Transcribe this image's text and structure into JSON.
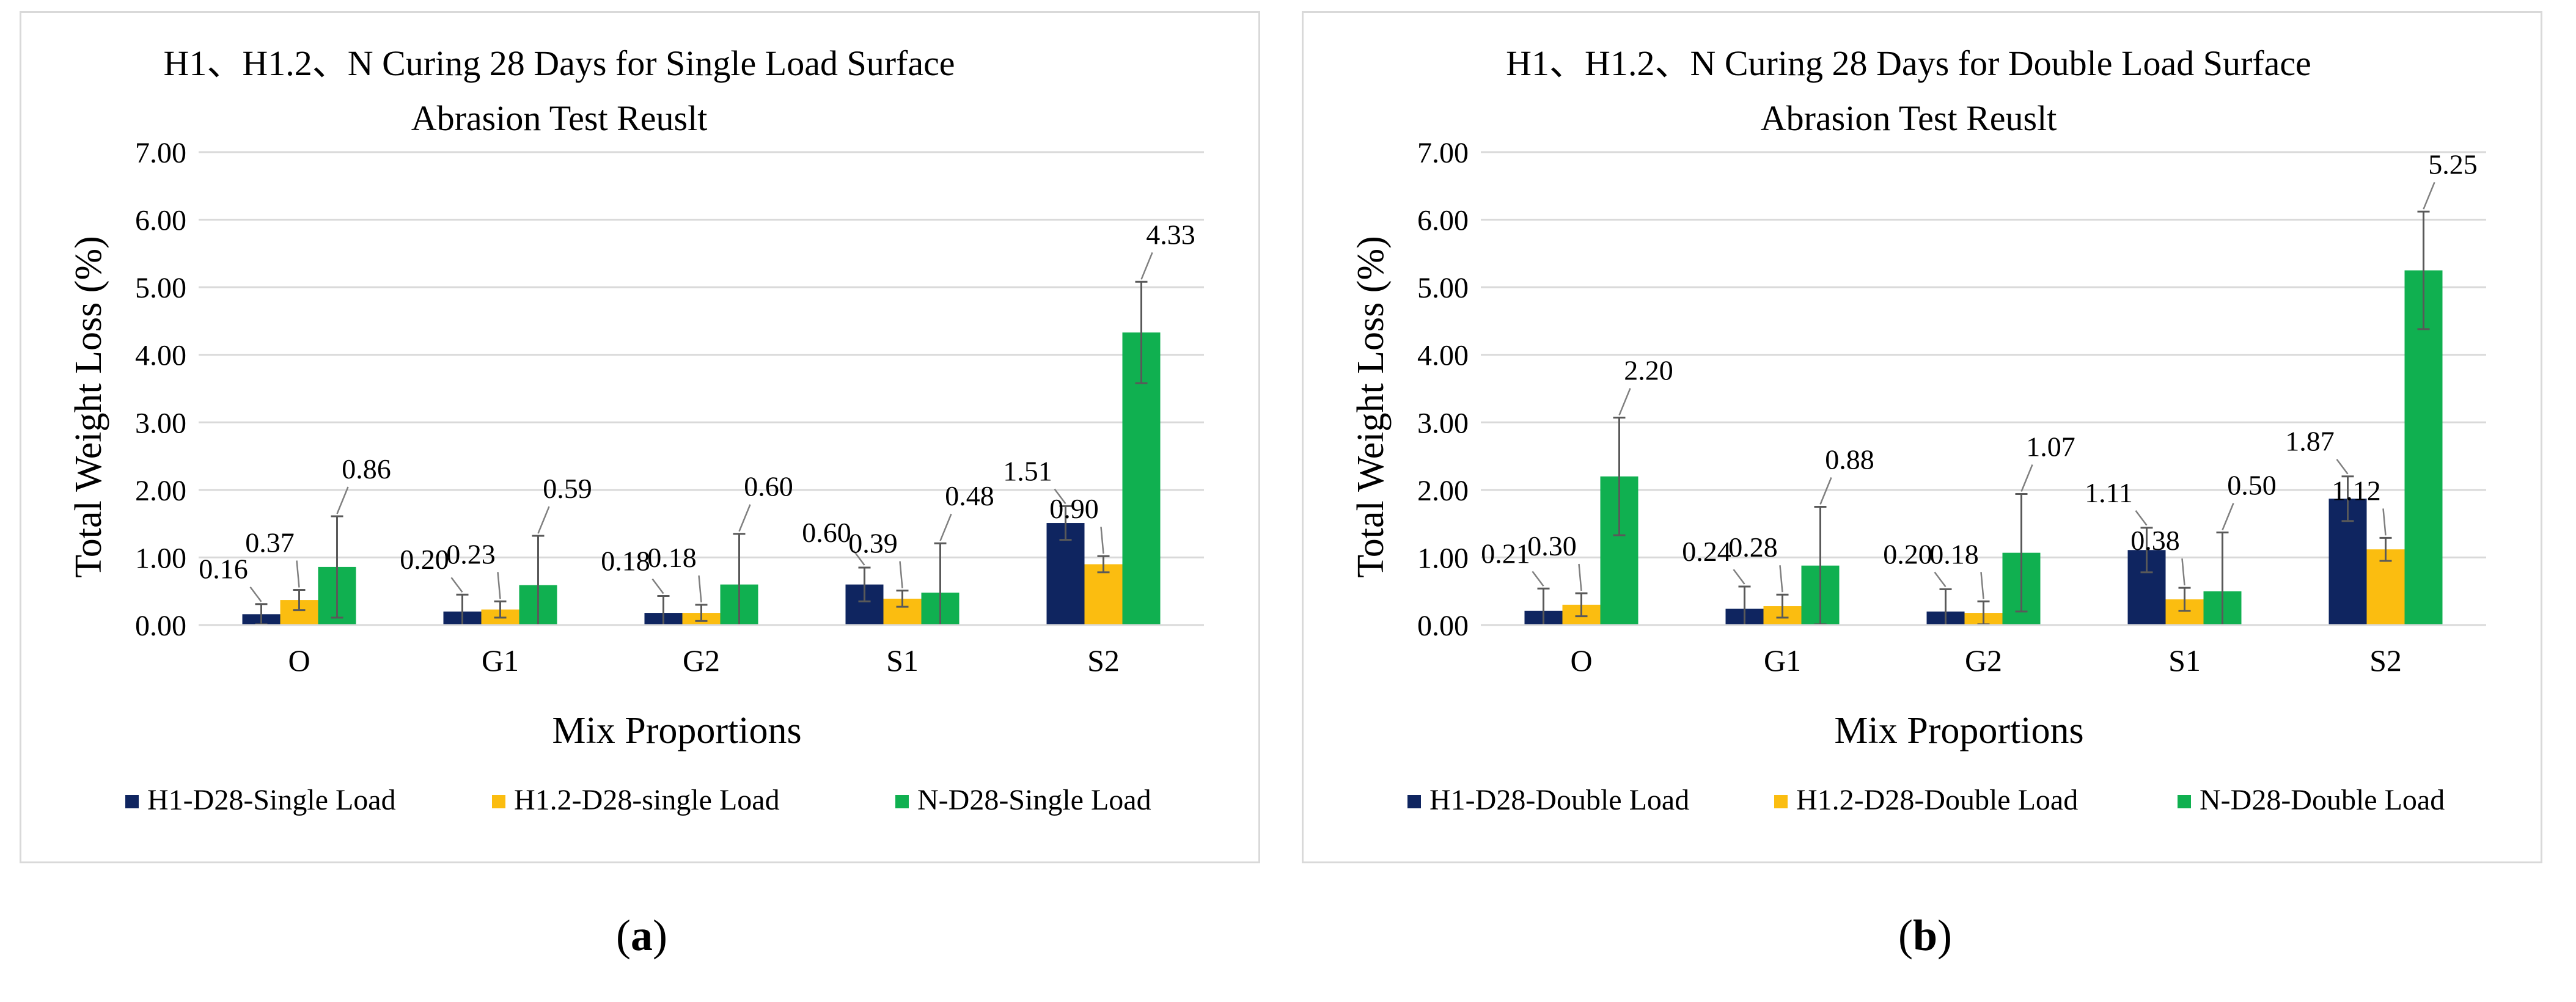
{
  "colors": {
    "h1": "#0f2560",
    "h12": "#fbbd10",
    "n": "#10b050",
    "grid": "#d9d9d9",
    "text": "#000000",
    "leader": "#7f7f7f"
  },
  "chart_data": [
    {
      "type": "bar",
      "title": [
        "H1、H1.2、N  Curing 28 Days for Single Load Surface",
        "Abrasion  Test Reuslt"
      ],
      "xlabel": "Mix Proportions",
      "ylabel": "Total Weight Loss (%)",
      "ylim": [
        0,
        7
      ],
      "yticks": [
        "0.00",
        "1.00",
        "2.00",
        "3.00",
        "4.00",
        "5.00",
        "6.00",
        "7.00"
      ],
      "grid": true,
      "legend": "bottom",
      "categories": [
        "O",
        "G1",
        "G2",
        "S1",
        "S2"
      ],
      "series": [
        {
          "name": "H1-D28-Single Load",
          "values": [
            0.16,
            0.2,
            0.18,
            0.6,
            1.51
          ],
          "errors": [
            0.15,
            0.25,
            0.25,
            0.25,
            0.25
          ],
          "labels": [
            "0.16",
            "0.20",
            "0.18",
            "0.60",
            "1.51"
          ]
        },
        {
          "name": "H1.2-D28-single Load",
          "values": [
            0.37,
            0.23,
            0.18,
            0.39,
            0.9
          ],
          "errors": [
            0.15,
            0.12,
            0.12,
            0.12,
            0.12
          ],
          "labels": [
            "0.37",
            "0.23",
            "0.18",
            "0.39",
            "0.90"
          ]
        },
        {
          "name": "N-D28-Single Load",
          "values": [
            0.86,
            0.59,
            0.6,
            0.48,
            4.33
          ],
          "errors": [
            0.75,
            0.73,
            0.75,
            0.73,
            0.75
          ],
          "labels": [
            "0.86",
            "0.59",
            "0.60",
            "0.48",
            "4.33"
          ]
        }
      ]
    },
    {
      "type": "bar",
      "title": [
        "H1、H1.2、N  Curing 28 Days for Double Load Surface",
        "Abrasion  Test Reuslt"
      ],
      "xlabel": "Mix Proportions",
      "ylabel": "Total Weight Loss (%)",
      "ylim": [
        0,
        7
      ],
      "yticks": [
        "0.00",
        "1.00",
        "2.00",
        "3.00",
        "4.00",
        "5.00",
        "6.00",
        "7.00"
      ],
      "grid": true,
      "legend": "bottom",
      "categories": [
        "O",
        "G1",
        "G2",
        "S1",
        "S2"
      ],
      "series": [
        {
          "name": "H1-D28-Double Load",
          "values": [
            0.21,
            0.24,
            0.2,
            1.11,
            1.87
          ],
          "errors": [
            0.33,
            0.33,
            0.33,
            0.33,
            0.33
          ],
          "labels": [
            "0.21",
            "0.24",
            "0.20",
            "1.11",
            "1.87"
          ]
        },
        {
          "name": "H1.2-D28-Double Load",
          "values": [
            0.3,
            0.28,
            0.18,
            0.38,
            1.12
          ],
          "errors": [
            0.17,
            0.17,
            0.17,
            0.17,
            0.17
          ],
          "labels": [
            "0.30",
            "0.28",
            "0.18",
            "0.38",
            "1.12"
          ]
        },
        {
          "name": "N-D28-Double Load",
          "values": [
            2.2,
            0.88,
            1.07,
            0.5,
            5.25
          ],
          "errors": [
            0.87,
            0.87,
            0.87,
            0.87,
            0.87
          ],
          "labels": [
            "2.20",
            "0.88",
            "1.07",
            "0.50",
            "5.25"
          ]
        }
      ]
    }
  ],
  "sublabels": [
    "a",
    "b"
  ]
}
